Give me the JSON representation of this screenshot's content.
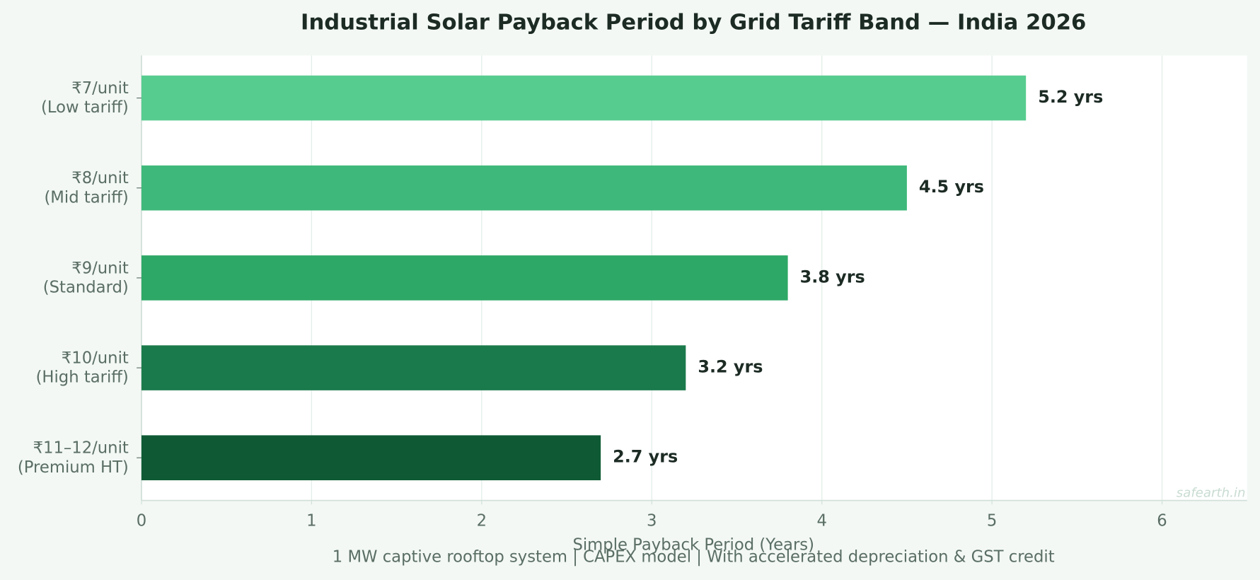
{
  "chart_data": {
    "type": "barh",
    "title": "Industrial Solar Payback Period by Grid Tariff Band — India 2026",
    "xlabel": "Simple Payback Period (Years)",
    "note": "1 MW captive rooftop system  |  CAPEX model  |  With accelerated depreciation & GST credit",
    "watermark": "safearth.in",
    "categories": [
      "₹7/unit\n(Low tariff)",
      "₹8/unit\n(Mid tariff)",
      "₹9/unit\n(Standard)",
      "₹10/unit\n(High tariff)",
      "₹11–12/unit\n(Premium HT)"
    ],
    "values": [
      5.2,
      4.5,
      3.8,
      3.2,
      2.7
    ],
    "value_labels": [
      "5.2 yrs",
      "4.5 yrs",
      "3.8 yrs",
      "3.2 yrs",
      "2.7 yrs"
    ],
    "colors": [
      "#57cc8f",
      "#3fb87b",
      "#2ea866",
      "#1b7a4b",
      "#0f5a35"
    ],
    "xlim": [
      0,
      6.5
    ],
    "xticks": [
      0,
      1,
      2,
      3,
      4,
      5,
      6
    ],
    "grid": true
  }
}
